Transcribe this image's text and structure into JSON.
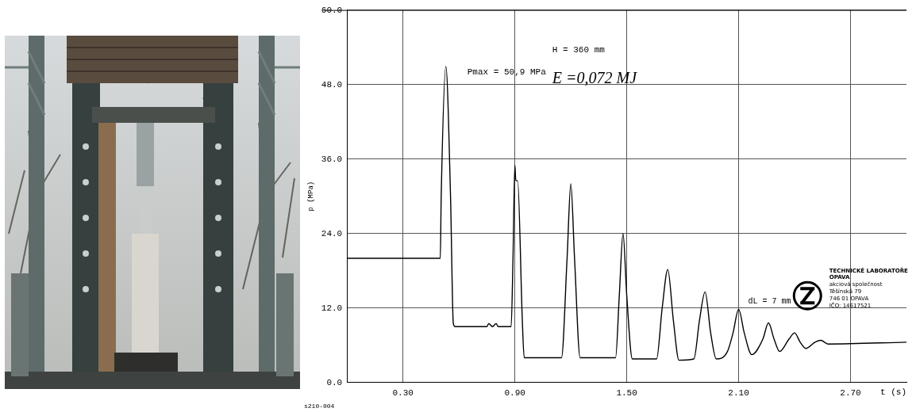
{
  "chart_data": {
    "type": "line",
    "x_label": "t (s)",
    "y_label": "p (MPa)",
    "color": "#000000",
    "grid": true,
    "xlim": [
      0,
      3.0
    ],
    "xticks": [
      {
        "value": 0.3,
        "label": "0.30"
      },
      {
        "value": 0.9,
        "label": "0.90"
      },
      {
        "value": 1.5,
        "label": "1.50"
      },
      {
        "value": 2.1,
        "label": "2.10"
      },
      {
        "value": 2.7,
        "label": "2.70"
      }
    ],
    "ylim": [
      0,
      60
    ],
    "yticks": [
      {
        "value": 0,
        "label": "0.0"
      },
      {
        "value": 12,
        "label": "12.0"
      },
      {
        "value": 24,
        "label": "24.0"
      },
      {
        "value": 36,
        "label": "36.0"
      },
      {
        "value": 48,
        "label": "48.0"
      },
      {
        "value": 60,
        "label": "60.0"
      }
    ],
    "x": [
      0,
      0.5,
      0.505,
      0.53,
      0.555,
      0.57,
      0.58,
      0.75,
      0.76,
      0.78,
      0.8,
      0.81,
      0.88,
      0.89,
      0.9,
      0.905,
      0.915,
      0.94,
      0.95,
      1.15,
      1.18,
      1.2,
      1.22,
      1.25,
      1.44,
      1.46,
      1.48,
      1.5,
      1.53,
      1.66,
      1.69,
      1.72,
      1.75,
      1.78,
      1.86,
      1.89,
      1.92,
      1.95,
      1.98,
      2.04,
      2.07,
      2.1,
      2.13,
      2.17,
      2.23,
      2.26,
      2.29,
      2.32,
      2.37,
      2.4,
      2.43,
      2.46,
      2.51,
      2.54,
      2.58,
      3.0
    ],
    "values": [
      20,
      20,
      30,
      50.9,
      30,
      9.5,
      9,
      9,
      9.5,
      9,
      9.5,
      9,
      9,
      20,
      35,
      32.5,
      32.5,
      10,
      4,
      4,
      20,
      32,
      20,
      4,
      4,
      14,
      24,
      14,
      3.8,
      3.8,
      12,
      18.2,
      10,
      3.6,
      3.8,
      10,
      14.6,
      8,
      3.8,
      5,
      8,
      11.8,
      8,
      4.5,
      7,
      9.6,
      7,
      5,
      7,
      8,
      6.5,
      5.5,
      6.5,
      6.8,
      6.2,
      6.5
    ],
    "annotations": [
      "Pmax = 50,9 MPa",
      "H = 360 mm",
      "E =0,072 MJ",
      "dL = 7 mm",
      "TECHNICKÉ LABORATOŘE",
      "OPAVA",
      "akciová společnost",
      "Těšínská 79",
      "746 01 OPAVA",
      "IČO: 14617521",
      "s210-004"
    ]
  }
}
